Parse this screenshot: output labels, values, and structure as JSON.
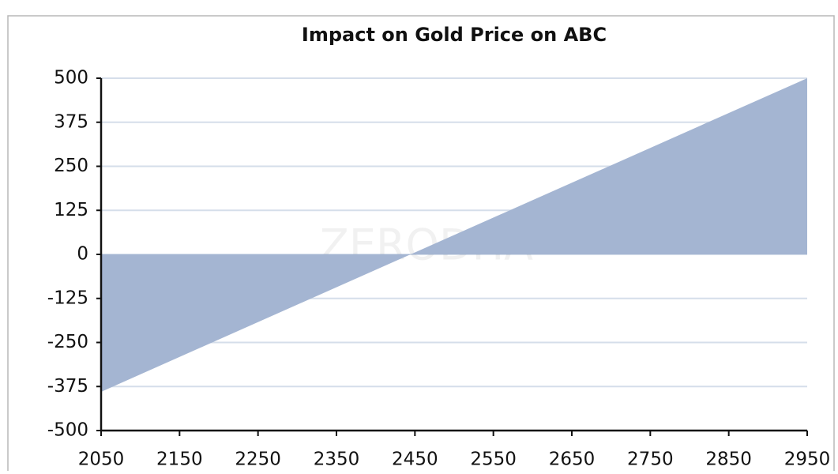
{
  "chart_data": {
    "type": "area",
    "title": "Impact on Gold Price on ABC",
    "x": [
      2050,
      2950
    ],
    "series": [
      {
        "name": null,
        "color": "#a4b5d2",
        "values": [
          -390,
          500
        ]
      }
    ],
    "xlim": [
      2050,
      2950
    ],
    "xticks": [
      2050,
      2150,
      2250,
      2350,
      2450,
      2550,
      2650,
      2750,
      2850,
      2950
    ],
    "ylim": [
      -500,
      500
    ],
    "yticks": [
      -500,
      -375,
      -250,
      -125,
      0,
      125,
      250,
      375,
      500
    ],
    "grid": true,
    "watermark": "ZERODHA"
  }
}
